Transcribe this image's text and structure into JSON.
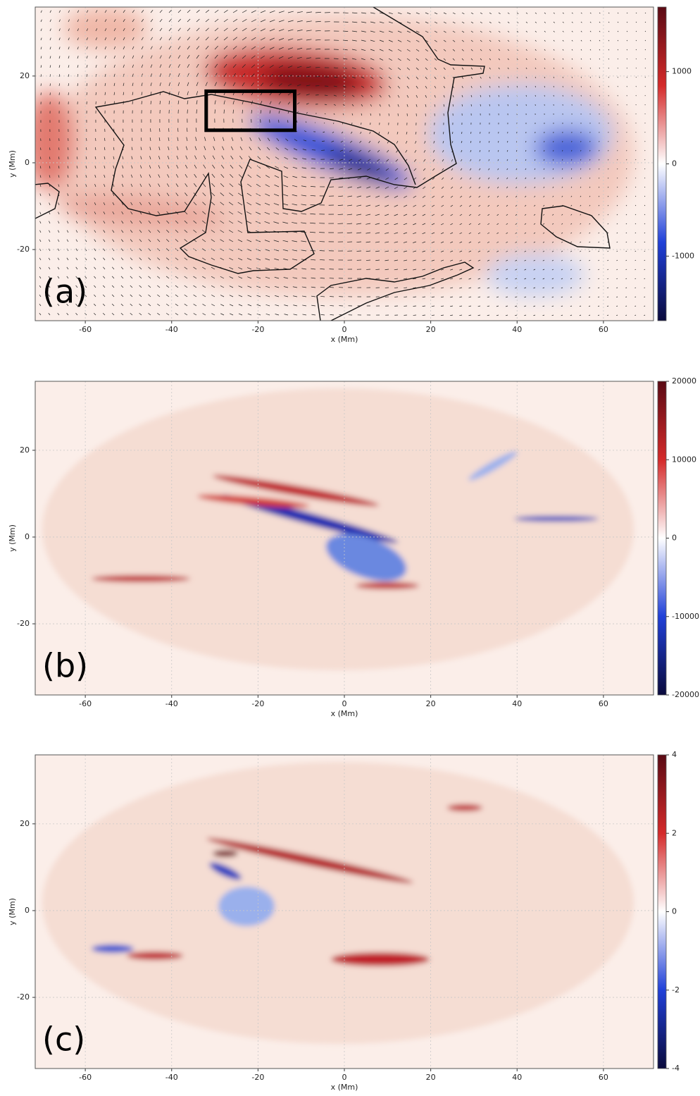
{
  "chart_data": [
    {
      "type": "heatmap",
      "panel_label": "(a)",
      "xlabel": "x (Mm)",
      "ylabel": "y (Mm)",
      "xlim": [
        -71.6,
        71.6
      ],
      "ylim": [
        -36.4,
        35.9
      ],
      "xticks": [
        -60,
        -40,
        -20,
        0,
        20,
        40,
        60
      ],
      "yticks": [
        -20,
        0,
        20
      ],
      "grid": true,
      "colormap": [
        "#0a0a3c",
        "#2040d8",
        "#ffffff",
        "#d42a2a",
        "#5a0a14"
      ],
      "clim": [
        -1700,
        1700
      ],
      "cticks": [
        1000,
        0,
        -1000
      ],
      "box": {
        "x": [
          -32,
          -11.5
        ],
        "y": [
          7.5,
          16.5
        ]
      }
    },
    {
      "type": "heatmap",
      "panel_label": "(b)",
      "xlabel": "x (Mm)",
      "ylabel": "y (Mm)",
      "xlim": [
        -71.6,
        71.6
      ],
      "ylim": [
        -36.4,
        35.9
      ],
      "xticks": [
        -60,
        -40,
        -20,
        0,
        20,
        40,
        60
      ],
      "yticks": [
        -20,
        0,
        20
      ],
      "grid": true,
      "colormap": [
        "#0a0a3c",
        "#2040d8",
        "#ffffff",
        "#d42a2a",
        "#5a0a14"
      ],
      "clim": [
        -20000,
        20000
      ],
      "cticks": [
        20000,
        10000,
        0,
        -10000,
        -20000
      ]
    },
    {
      "type": "heatmap",
      "panel_label": "(c)",
      "xlabel": "x (Mm)",
      "ylabel": "y (Mm)",
      "xlim": [
        -71.6,
        71.6
      ],
      "ylim": [
        -36.4,
        35.9
      ],
      "xticks": [
        -60,
        -40,
        -20,
        0,
        20,
        40,
        60
      ],
      "yticks": [
        -20,
        0,
        20
      ],
      "grid": true,
      "colormap": [
        "#0a0a3c",
        "#2040d8",
        "#ffffff",
        "#d42a2a",
        "#5a0a14"
      ],
      "clim": [
        -4,
        4
      ],
      "cticks": [
        4,
        2,
        0,
        -2,
        -4
      ]
    }
  ]
}
